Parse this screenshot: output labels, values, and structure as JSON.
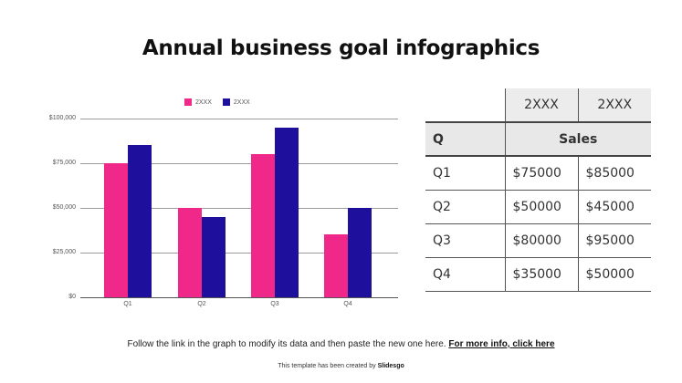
{
  "title": "Annual business goal infographics",
  "colors": {
    "series1": "#f0288a",
    "series2": "#1e0f9c",
    "grid": "#9a9a9a"
  },
  "chart_data": {
    "type": "bar",
    "title": "",
    "xlabel": "",
    "ylabel": "",
    "categories": [
      "Q1",
      "Q2",
      "Q3",
      "Q4"
    ],
    "series": [
      {
        "name": "2XXX",
        "color": "#f0288a",
        "values": [
          75000,
          50000,
          80000,
          35000
        ]
      },
      {
        "name": "2XXX",
        "color": "#1e0f9c",
        "values": [
          85000,
          45000,
          95000,
          50000
        ]
      }
    ],
    "ylim": [
      0,
      100000
    ],
    "yticks": [
      "$0",
      "$25,000",
      "$50,000",
      "$75,000",
      "$100,000"
    ],
    "grid": true,
    "legend_position": "top"
  },
  "table": {
    "year_headers": [
      "2XXX",
      "2XXX"
    ],
    "col_q": "Q",
    "col_sales": "Sales",
    "rows": [
      {
        "q": "Q1",
        "a": "$75000",
        "b": "$85000"
      },
      {
        "q": "Q2",
        "a": "$50000",
        "b": "$45000"
      },
      {
        "q": "Q3",
        "a": "$80000",
        "b": "$95000"
      },
      {
        "q": "Q4",
        "a": "$35000",
        "b": "$50000"
      }
    ]
  },
  "footer": {
    "text": "Follow the link in the graph to modify its data and then paste the new one here. ",
    "link": "For more info, click here"
  },
  "credit": {
    "text": "This template has been created by ",
    "brand": "Slidesgo"
  }
}
